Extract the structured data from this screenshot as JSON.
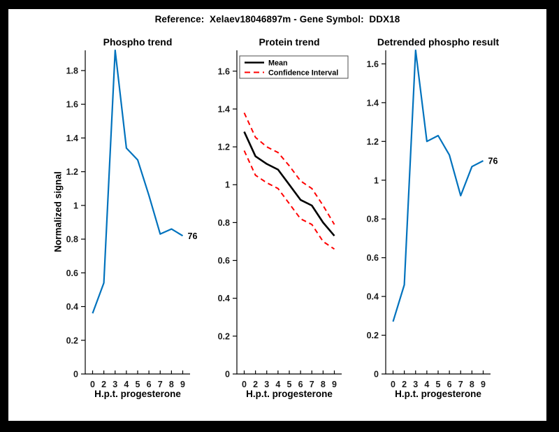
{
  "figure_title": "Reference:  Xelaev18046897m - Gene Symbol:  DDX18",
  "colors": {
    "frame": "#000000",
    "canvas": "#FFFFFF",
    "signal_blue": "#0072BD",
    "ci_red": "#FF0000",
    "mean_black": "#000000",
    "axis": "#000000",
    "tick_text": "#1a1a1a"
  },
  "chart_data": [
    {
      "type": "line",
      "title": "Phospho trend",
      "xlabel": "H.p.t. progesterone",
      "ylabel": "Normalized signal",
      "x_tick_labels": [
        "0",
        "2",
        "3",
        "4",
        "5",
        "6",
        "7",
        "8",
        "9"
      ],
      "x_values": [
        0,
        2,
        3,
        4,
        5,
        6,
        7,
        8,
        9
      ],
      "ytick_labels": [
        "0",
        "0.2",
        "0.4",
        "0.6",
        "0.8",
        "1",
        "1.2",
        "1.4",
        "1.6",
        "1.8"
      ],
      "ylim": [
        0,
        1.92
      ],
      "grid": false,
      "legend": null,
      "end_label": "76",
      "series": [
        {
          "name": "phospho-signal",
          "color": "#0072BD",
          "style": "solid",
          "values": [
            0.36,
            0.54,
            1.92,
            1.34,
            1.27,
            1.06,
            0.83,
            0.86,
            0.82
          ]
        }
      ]
    },
    {
      "type": "line",
      "title": "Protein trend",
      "xlabel": "H.p.t. progesterone",
      "ylabel": null,
      "x_tick_labels": [
        "0",
        "2",
        "3",
        "4",
        "5",
        "6",
        "7",
        "8",
        "9"
      ],
      "x_values": [
        0,
        2,
        3,
        4,
        5,
        6,
        7,
        8,
        9
      ],
      "ytick_labels": [
        "0",
        "0.2",
        "0.4",
        "0.6",
        "0.8",
        "1",
        "1.2",
        "1.4",
        "1.6"
      ],
      "ylim": [
        0,
        1.71
      ],
      "grid": false,
      "legend": {
        "position": "top-left",
        "entries": [
          {
            "label": "Mean",
            "color": "#000000",
            "style": "solid"
          },
          {
            "label": "Confidence Interval",
            "color": "#FF0000",
            "style": "dashed"
          }
        ]
      },
      "end_label": null,
      "series": [
        {
          "name": "upper-confidence-interval",
          "color": "#FF0000",
          "style": "dashed",
          "values": [
            1.38,
            1.25,
            1.2,
            1.17,
            1.1,
            1.02,
            0.98,
            0.89,
            0.79
          ]
        },
        {
          "name": "mean",
          "color": "#000000",
          "style": "solid",
          "values": [
            1.28,
            1.15,
            1.11,
            1.08,
            1.0,
            0.92,
            0.89,
            0.8,
            0.73
          ]
        },
        {
          "name": "lower-confidence-interval",
          "color": "#FF0000",
          "style": "dashed",
          "values": [
            1.18,
            1.05,
            1.01,
            0.98,
            0.9,
            0.82,
            0.79,
            0.7,
            0.66
          ]
        }
      ]
    },
    {
      "type": "line",
      "title": "Detrended phospho result",
      "xlabel": "H.p.t. progesterone",
      "ylabel": null,
      "x_tick_labels": [
        "0",
        "2",
        "3",
        "4",
        "5",
        "6",
        "7",
        "8",
        "9"
      ],
      "x_values": [
        0,
        2,
        3,
        4,
        5,
        6,
        7,
        8,
        9
      ],
      "ytick_labels": [
        "0",
        "0.2",
        "0.4",
        "0.6",
        "0.8",
        "1",
        "1.2",
        "1.4",
        "1.6"
      ],
      "ylim": [
        0,
        1.67
      ],
      "grid": false,
      "legend": null,
      "end_label": "76",
      "series": [
        {
          "name": "detrended-phospho-signal",
          "color": "#0072BD",
          "style": "solid",
          "values": [
            0.27,
            0.46,
            1.67,
            1.2,
            1.23,
            1.13,
            0.92,
            1.07,
            1.1
          ]
        }
      ]
    }
  ]
}
